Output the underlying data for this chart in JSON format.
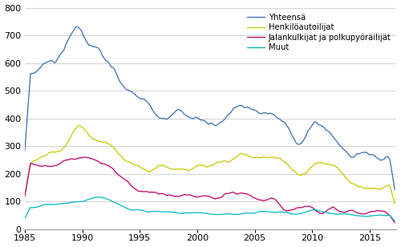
{
  "ylim": [
    0,
    800
  ],
  "xlim_start": 1985.0,
  "xlim_end": 2017.333,
  "yticks": [
    0,
    100,
    200,
    300,
    400,
    500,
    600,
    700,
    800
  ],
  "xticks": [
    1985,
    1990,
    1995,
    2000,
    2005,
    2010,
    2015
  ],
  "colors": {
    "yhteensa": "#3a6eb5",
    "henkiloautoilijat": "#c8c800",
    "jalankulkijat": "#c0006a",
    "muut": "#00b8c0"
  },
  "legend_labels": [
    "Yhteensä",
    "Henkilöautoilijat",
    "Jalankulkijat ja polkupyöräilijät",
    "Muut"
  ],
  "background_color": "#ffffff",
  "grid_color": "#cccccc"
}
